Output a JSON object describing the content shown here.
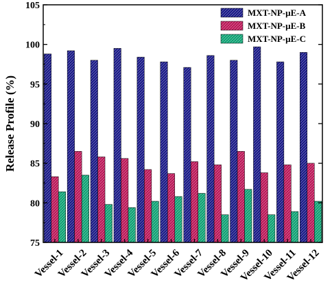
{
  "chart_data": {
    "type": "bar",
    "categories": [
      "Vessel-1",
      "Vessel-2",
      "Vessel-3",
      "Vessel-4",
      "Vessel-5",
      "Vessel-6",
      "Vessel-7",
      "Vessel-8",
      "Vessel-9",
      "Vessel-10",
      "Vessel-11",
      "Vessel-12"
    ],
    "series": [
      {
        "name": "MXT-NP-µE-A",
        "color": "#1a1a8c",
        "pattern": "crosshatch",
        "values": [
          98.8,
          99.2,
          98.0,
          99.5,
          98.4,
          97.8,
          97.1,
          98.6,
          98.0,
          99.7,
          97.8,
          99.0
        ]
      },
      {
        "name": "MXT-NP-µE-B",
        "color": "#c2185b",
        "pattern": "crosshatch",
        "values": [
          83.3,
          86.5,
          85.8,
          85.6,
          84.2,
          83.7,
          85.2,
          84.8,
          86.5,
          83.8,
          84.8,
          85.0
        ]
      },
      {
        "name": "MXT-NP-µE-C",
        "color": "#10a878",
        "pattern": "crosshatch",
        "values": [
          81.4,
          83.5,
          79.8,
          79.4,
          80.2,
          80.8,
          81.2,
          78.5,
          81.7,
          78.5,
          78.9,
          80.2
        ]
      }
    ],
    "ylabel": "Release Profile (%)",
    "xlabel": "",
    "ylim": [
      75,
      105
    ],
    "yticks": [
      75,
      80,
      85,
      90,
      95,
      100,
      105
    ],
    "legend_position": "top-right",
    "grid": false
  }
}
